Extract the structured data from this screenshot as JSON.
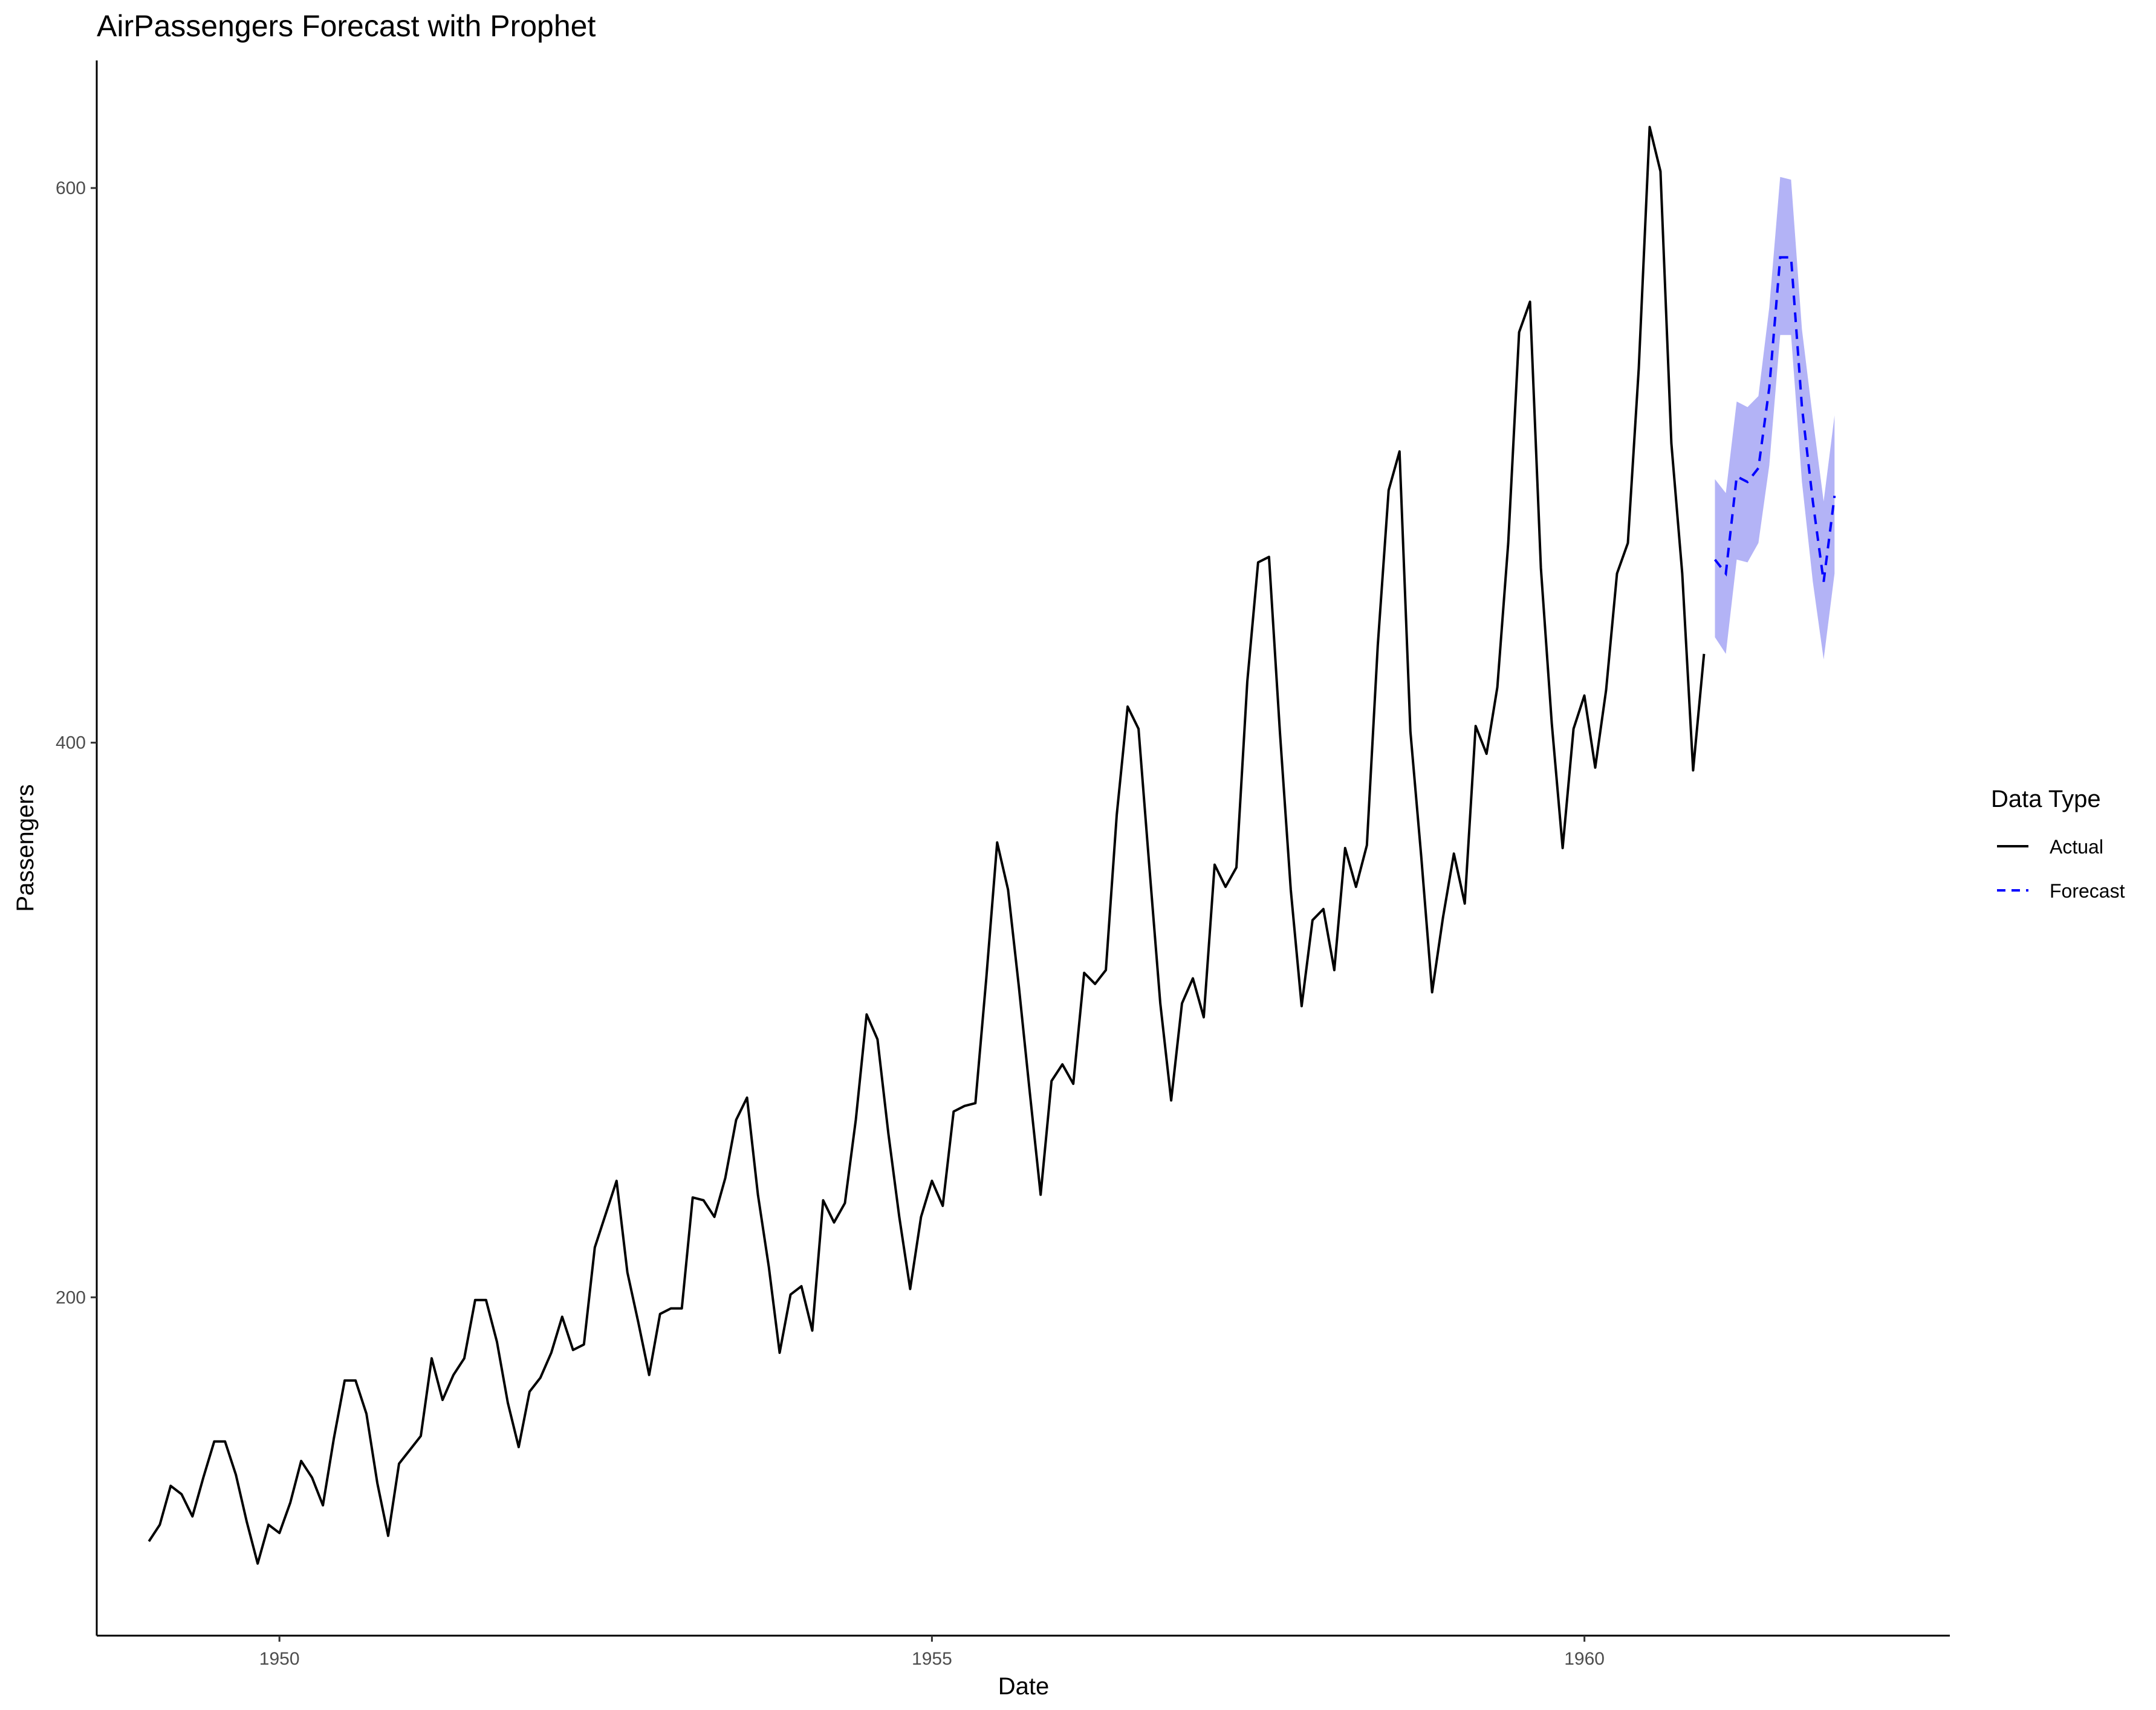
{
  "chart_data": {
    "type": "line",
    "title": "AirPassengers Forecast with Prophet",
    "xlabel": "Date",
    "ylabel": "Passengers",
    "xlim": [
      1948.6,
      1962.8
    ],
    "ylim": [
      78,
      646
    ],
    "x_ticks": [
      1950,
      1955,
      1960
    ],
    "x_tick_labels": [
      "1950",
      "1955",
      "1960"
    ],
    "y_ticks": [
      200,
      400,
      600
    ],
    "y_tick_labels": [
      "200",
      "400",
      "600"
    ],
    "grid": false,
    "legend": {
      "title": "Data Type",
      "position": "right",
      "entries": [
        {
          "label": "Actual",
          "color": "#000000",
          "dash": "solid"
        },
        {
          "label": "Forecast",
          "color": "#0000ff",
          "dash": "dashed"
        }
      ]
    },
    "series": [
      {
        "name": "Actual",
        "color": "#000000",
        "x_start": 1949.0,
        "x_step": 0.08333,
        "values": [
          112,
          118,
          132,
          129,
          121,
          135,
          148,
          148,
          136,
          119,
          104,
          118,
          115,
          126,
          141,
          135,
          125,
          149,
          170,
          170,
          158,
          133,
          114,
          140,
          145,
          150,
          178,
          163,
          172,
          178,
          199,
          199,
          184,
          162,
          146,
          166,
          171,
          180,
          193,
          181,
          183,
          218,
          230,
          242,
          209,
          191,
          172,
          194,
          196,
          196,
          236,
          235,
          229,
          243,
          264,
          272,
          237,
          211,
          180,
          201,
          204,
          188,
          235,
          227,
          234,
          264,
          302,
          293,
          259,
          229,
          203,
          229,
          242,
          233,
          267,
          269,
          270,
          315,
          364,
          347,
          312,
          274,
          237,
          278,
          284,
          277,
          317,
          313,
          318,
          374,
          413,
          405,
          355,
          306,
          271,
          306,
          315,
          301,
          356,
          348,
          355,
          422,
          465,
          467,
          404,
          347,
          305,
          336,
          340,
          318,
          362,
          348,
          363,
          435,
          491,
          505,
          404,
          359,
          310,
          337,
          360,
          342,
          406,
          396,
          420,
          472,
          548,
          559,
          463,
          407,
          362,
          405,
          417,
          391,
          419,
          461,
          472,
          535,
          622,
          606,
          508,
          461,
          390,
          432
        ]
      },
      {
        "name": "Forecast",
        "color": "#0000ff",
        "x_start": 1961.0,
        "x_step": 0.08333,
        "values": [
          466,
          461,
          496,
          494,
          499,
          528,
          575,
          575,
          521,
          487,
          458,
          489
        ],
        "lower": [
          438,
          432,
          466,
          465,
          472,
          500,
          547,
          547,
          494,
          458,
          430,
          461
        ],
        "upper": [
          495,
          490,
          523,
          521,
          525,
          557,
          604,
          603,
          549,
          517,
          487,
          518
        ],
        "band_color": "#b3b3f6"
      }
    ]
  }
}
